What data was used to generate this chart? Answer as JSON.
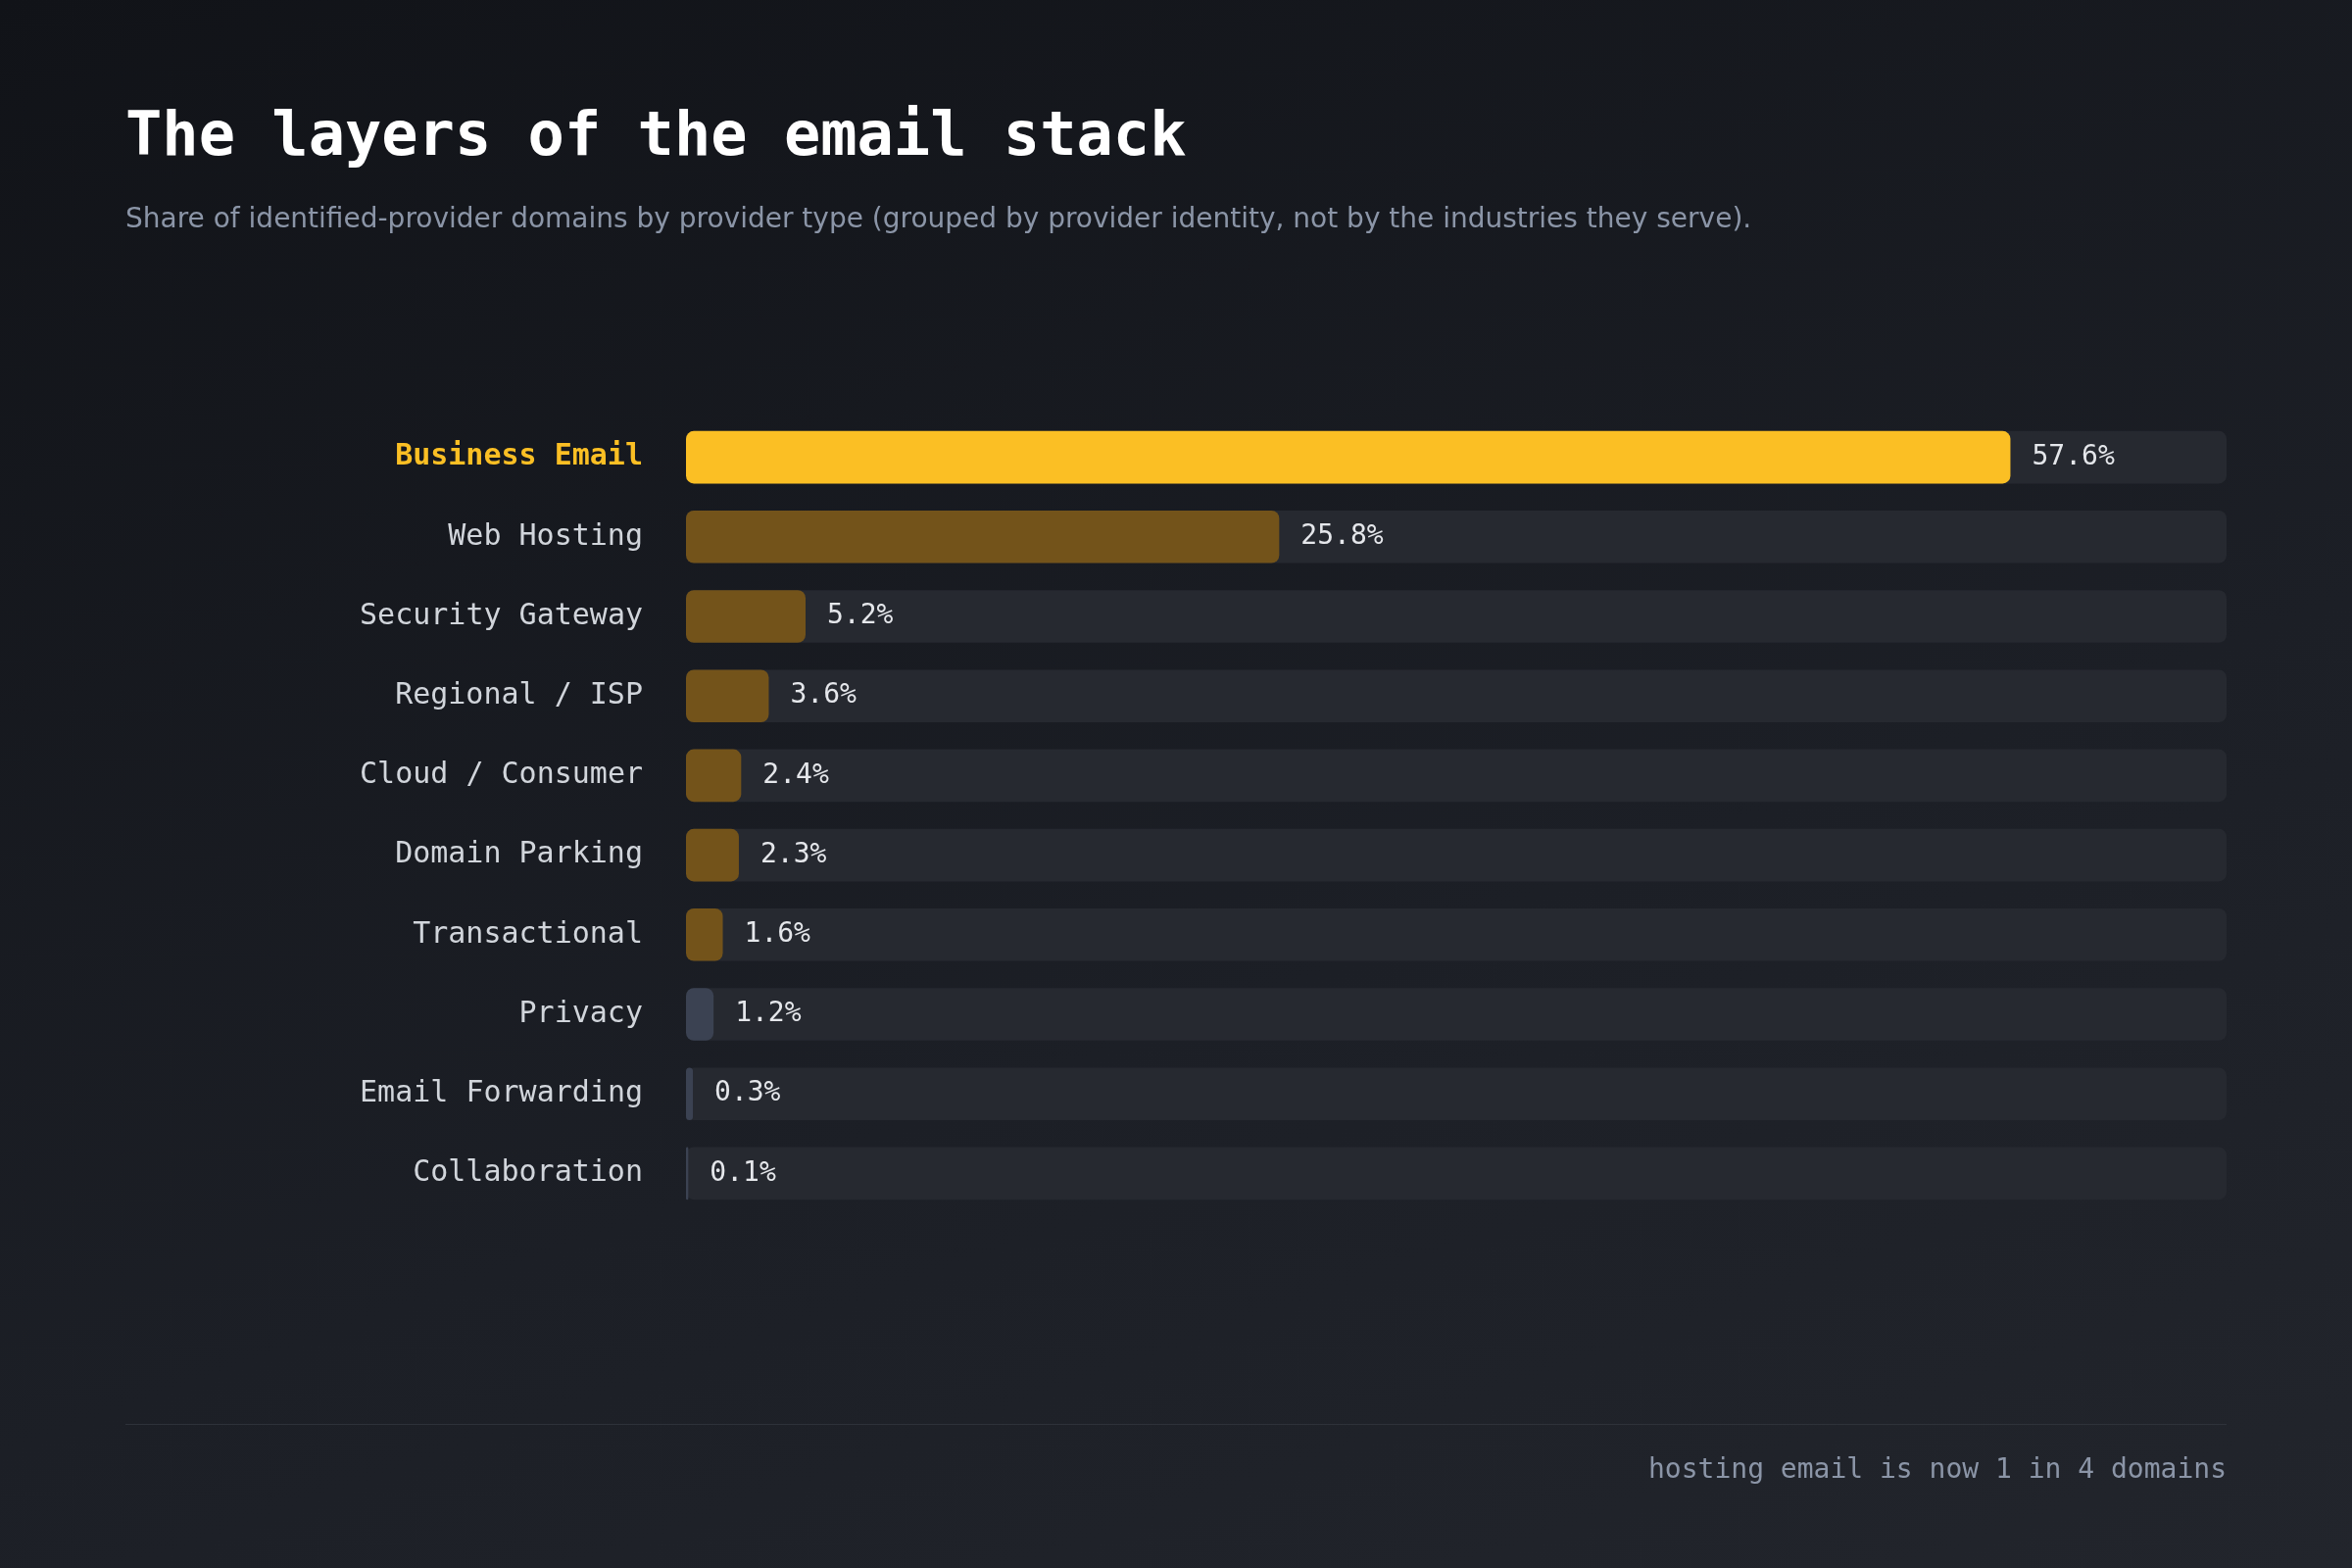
{
  "chart_data": {
    "type": "bar",
    "orientation": "horizontal",
    "title": "The layers of the email stack",
    "subtitle": "Share of identified-provider domains by provider type (grouped by provider identity, not by the industries they serve).",
    "categories": [
      "Business Email",
      "Web Hosting",
      "Security Gateway",
      "Regional / ISP",
      "Cloud / Consumer",
      "Domain Parking",
      "Transactional",
      "Privacy",
      "Email Forwarding",
      "Collaboration"
    ],
    "values": [
      57.6,
      25.8,
      5.2,
      3.6,
      2.4,
      2.3,
      1.6,
      1.2,
      0.3,
      0.1
    ],
    "colors": [
      "#fbbf24",
      "#73531a",
      "#73531a",
      "#73531a",
      "#73531a",
      "#73531a",
      "#73531a",
      "#3b4252",
      "#3b4252",
      "#3b4252"
    ],
    "value_labels": [
      "57.6%",
      "25.8%",
      "5.2%",
      "3.6%",
      "2.4%",
      "2.3%",
      "1.6%",
      "1.2%",
      "0.3%",
      "0.1%"
    ],
    "xlim": [
      0,
      67
    ],
    "tick_labels": "y",
    "annotations": [
      "hosting email is now 1 in 4 domains"
    ]
  }
}
